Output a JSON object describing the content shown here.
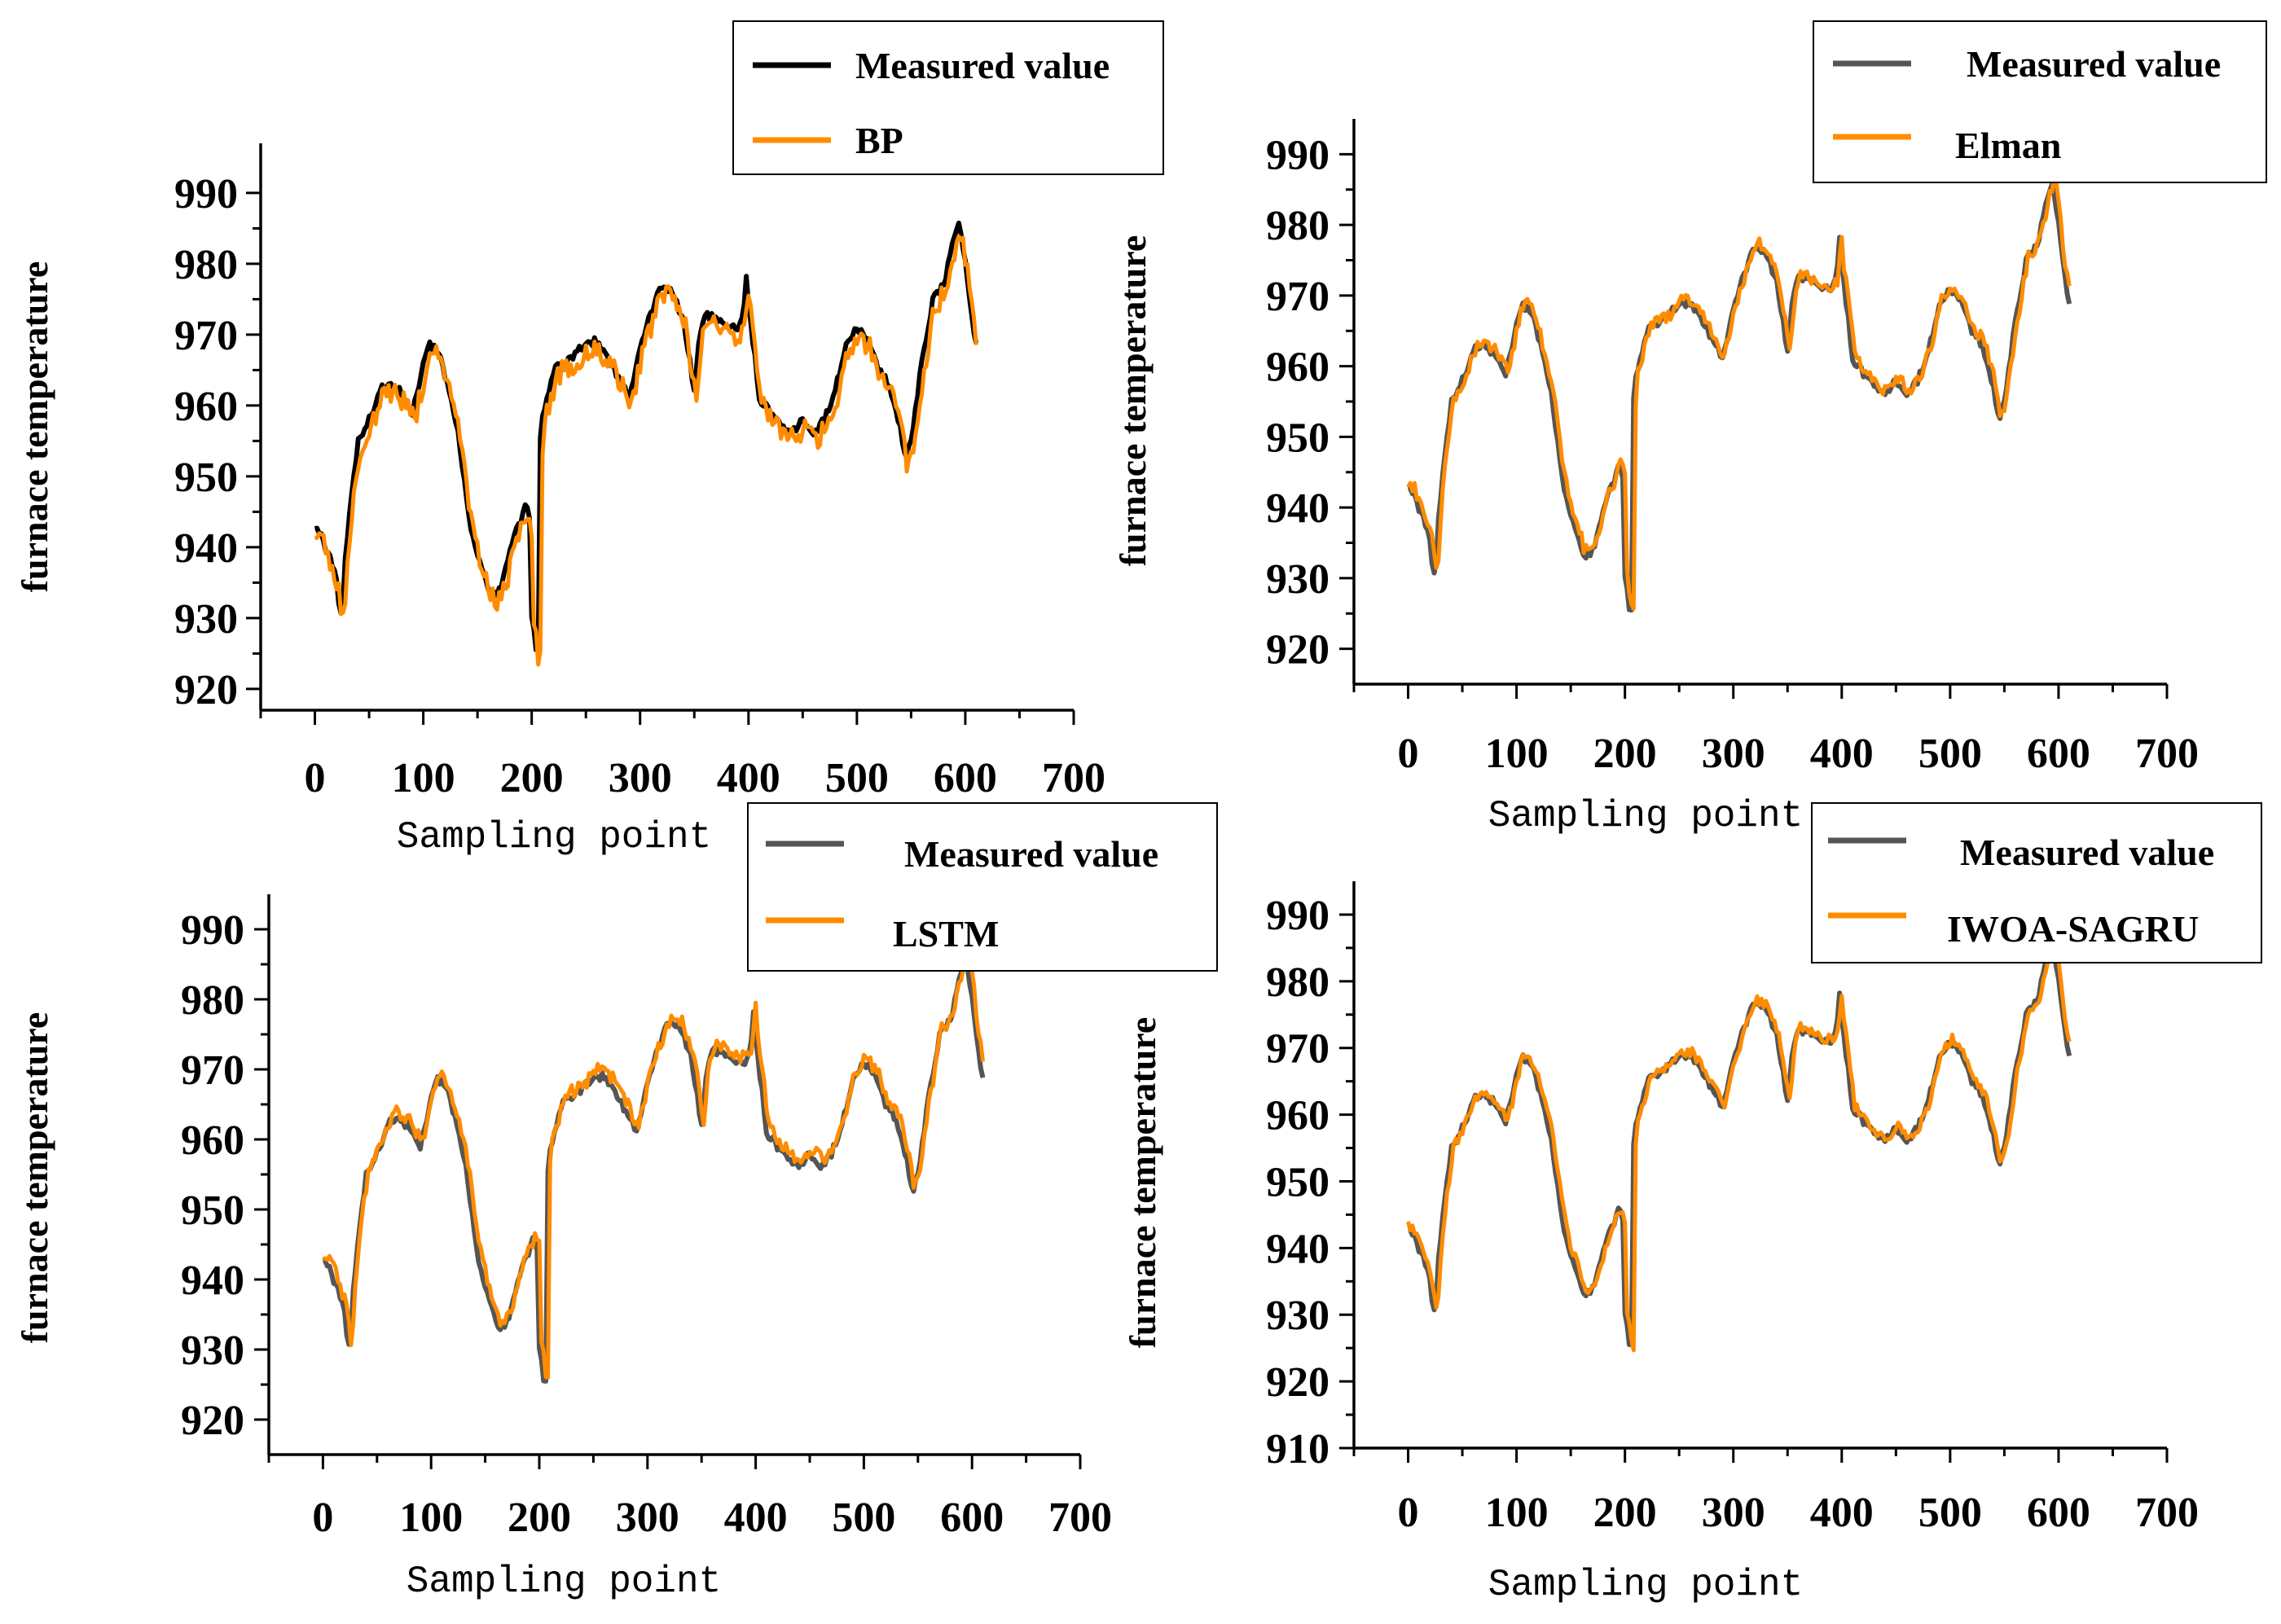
{
  "chart_data": [
    {
      "type": "line",
      "id": "bp",
      "xlabel": "Sampling point",
      "ylabel": "furnace temperature",
      "xlim": [
        -50,
        700
      ],
      "ylim": [
        917,
        997
      ],
      "xticks": [
        "0",
        "100",
        "200",
        "300",
        "400",
        "500",
        "600",
        "700"
      ],
      "yticks": [
        "920",
        "930",
        "940",
        "950",
        "960",
        "970",
        "980",
        "990"
      ],
      "legend_position": "top-right",
      "series": [
        {
          "name": "Measured value",
          "color": "#000000"
        },
        {
          "name": "BP",
          "color": "#ff8c00"
        }
      ]
    },
    {
      "type": "line",
      "id": "elman",
      "xlabel": "Sampling point",
      "ylabel": "furnace temperature",
      "xlim": [
        -50,
        700
      ],
      "ylim": [
        915,
        995
      ],
      "xticks": [
        "0",
        "100",
        "200",
        "300",
        "400",
        "500",
        "600",
        "700"
      ],
      "yticks": [
        "920",
        "930",
        "940",
        "950",
        "960",
        "970",
        "980",
        "990"
      ],
      "legend_position": "top-right",
      "series": [
        {
          "name": "Measured value",
          "color": "#555555"
        },
        {
          "name": "Elman",
          "color": "#ff8c00"
        }
      ]
    },
    {
      "type": "line",
      "id": "lstm",
      "xlabel": "Sampling point",
      "ylabel": "furnace temperature",
      "xlim": [
        -50,
        700
      ],
      "ylim": [
        915,
        995
      ],
      "xticks": [
        "0",
        "100",
        "200",
        "300",
        "400",
        "500",
        "600",
        "700"
      ],
      "yticks": [
        "920",
        "930",
        "940",
        "950",
        "960",
        "970",
        "980",
        "990"
      ],
      "legend_position": "top-right",
      "series": [
        {
          "name": "Measured value",
          "color": "#555555"
        },
        {
          "name": "LSTM",
          "color": "#ff8c00"
        }
      ]
    },
    {
      "type": "line",
      "id": "iwoa",
      "xlabel": "Sampling point",
      "ylabel": "furnace temperature",
      "xlim": [
        -50,
        700
      ],
      "ylim": [
        910,
        995
      ],
      "xticks": [
        "0",
        "100",
        "200",
        "300",
        "400",
        "500",
        "600",
        "700"
      ],
      "yticks": [
        "910",
        "920",
        "930",
        "940",
        "950",
        "960",
        "970",
        "980",
        "990"
      ],
      "legend_position": "top-right",
      "series": [
        {
          "name": "Measured value",
          "color": "#555555"
        },
        {
          "name": "IWOA-SAGRU",
          "color": "#ff8c00"
        }
      ]
    }
  ],
  "measured_profile": {
    "x": [
      0,
      5,
      10,
      15,
      20,
      25,
      28,
      32,
      36,
      40,
      45,
      50,
      55,
      60,
      65,
      70,
      75,
      80,
      85,
      90,
      95,
      100,
      105,
      110,
      115,
      120,
      125,
      130,
      135,
      140,
      145,
      150,
      155,
      160,
      165,
      170,
      175,
      180,
      185,
      190,
      195,
      198,
      200,
      202,
      204,
      206,
      208,
      210,
      214,
      218,
      222,
      226,
      230,
      240,
      250,
      260,
      270,
      280,
      290,
      300,
      310,
      320,
      330,
      340,
      345,
      350,
      355,
      360,
      370,
      380,
      390,
      395,
      398,
      400,
      405,
      410,
      420,
      430,
      440,
      450,
      460,
      470,
      480,
      490,
      500,
      510,
      520,
      530,
      540,
      545,
      550,
      560,
      570,
      580,
      590,
      595,
      600,
      605,
      610
    ],
    "y": [
      943,
      942,
      940,
      938,
      935,
      929,
      938,
      945,
      950,
      955,
      956,
      958,
      960,
      962,
      963,
      963,
      962,
      962,
      960,
      959,
      962,
      966,
      969,
      968,
      967,
      964,
      961,
      958,
      953,
      947,
      942,
      939,
      937,
      934,
      933,
      934,
      936,
      940,
      942,
      944,
      946,
      944,
      930,
      928,
      926,
      925,
      955,
      959,
      961,
      963,
      965,
      966,
      966,
      967,
      969,
      969,
      967,
      964,
      961,
      968,
      973,
      977,
      976,
      972,
      967,
      962,
      970,
      973,
      972,
      971,
      971,
      972,
      978,
      974,
      968,
      961,
      959,
      957,
      956,
      958,
      956,
      958,
      962,
      969,
      971,
      969,
      965,
      963,
      957,
      952,
      955,
      966,
      975,
      977,
      984,
      986,
      980,
      973,
      969
    ]
  }
}
